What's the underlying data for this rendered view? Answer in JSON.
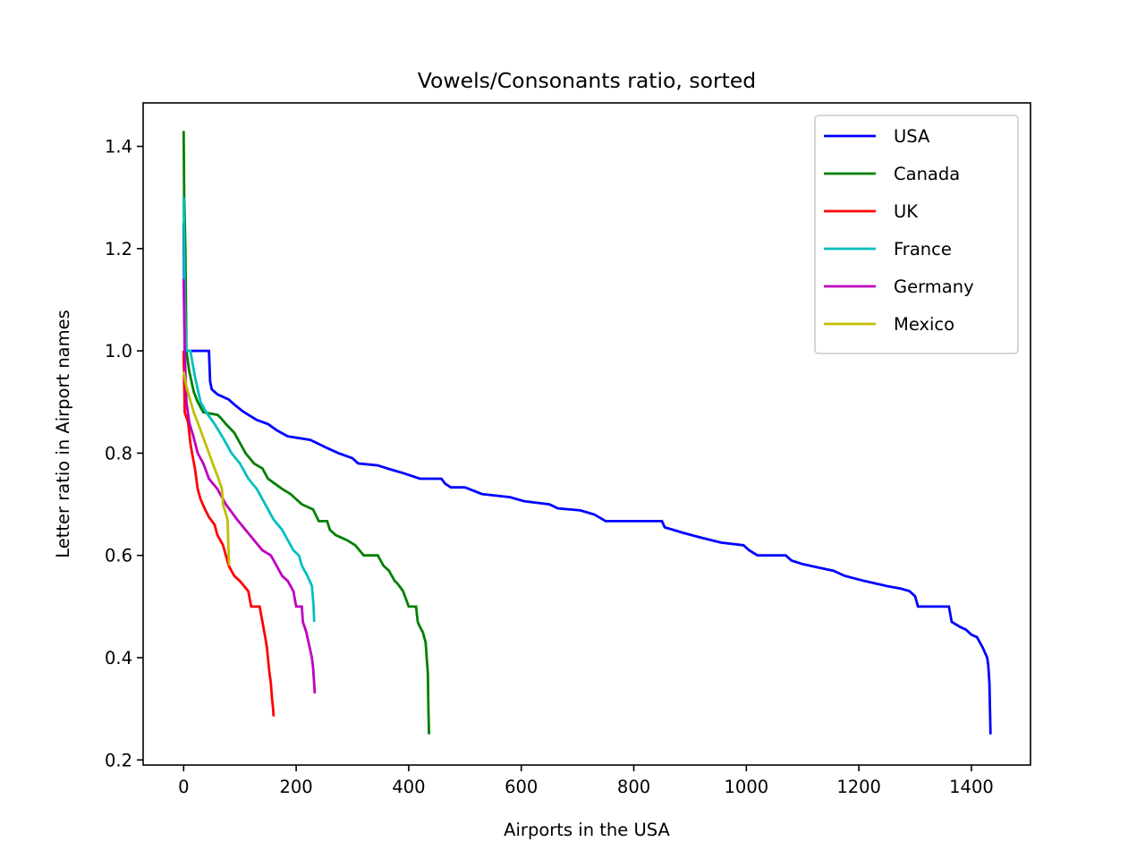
{
  "chart_data": {
    "type": "line",
    "title": "Vowels/Consonants ratio, sorted",
    "xlabel": "Airports in the USA",
    "ylabel": "Letter ratio in Airport names",
    "xlim": [
      -72,
      1505
    ],
    "ylim": [
      0.19,
      1.485
    ],
    "xticks": [
      0,
      200,
      400,
      600,
      800,
      1000,
      1200,
      1400
    ],
    "xtick_labels": [
      "0",
      "200",
      "400",
      "600",
      "800",
      "1000",
      "1200",
      "1400"
    ],
    "yticks": [
      0.2,
      0.4,
      0.6,
      0.8,
      1.0,
      1.2,
      1.4
    ],
    "ytick_labels": [
      "0.2",
      "0.4",
      "0.6",
      "0.8",
      "1.0",
      "1.2",
      "1.4"
    ],
    "grid": false,
    "legend_position": "top-right",
    "series": [
      {
        "name": "USA",
        "color": "#0000ff",
        "points": [
          [
            0,
            1.25
          ],
          [
            1,
            1.1
          ],
          [
            3,
            1.0
          ],
          [
            45,
            1.0
          ],
          [
            47,
            0.94
          ],
          [
            50,
            0.925
          ],
          [
            60,
            0.915
          ],
          [
            80,
            0.905
          ],
          [
            90,
            0.895
          ],
          [
            105,
            0.882
          ],
          [
            115,
            0.875
          ],
          [
            130,
            0.865
          ],
          [
            150,
            0.857
          ],
          [
            165,
            0.845
          ],
          [
            185,
            0.833
          ],
          [
            225,
            0.826
          ],
          [
            240,
            0.818
          ],
          [
            255,
            0.81
          ],
          [
            275,
            0.8
          ],
          [
            300,
            0.79
          ],
          [
            310,
            0.78
          ],
          [
            345,
            0.776
          ],
          [
            365,
            0.769
          ],
          [
            390,
            0.761
          ],
          [
            420,
            0.75
          ],
          [
            458,
            0.75
          ],
          [
            465,
            0.74
          ],
          [
            475,
            0.733
          ],
          [
            500,
            0.733
          ],
          [
            530,
            0.72
          ],
          [
            580,
            0.714
          ],
          [
            605,
            0.706
          ],
          [
            650,
            0.7
          ],
          [
            665,
            0.692
          ],
          [
            705,
            0.688
          ],
          [
            730,
            0.68
          ],
          [
            750,
            0.667
          ],
          [
            850,
            0.667
          ],
          [
            855,
            0.655
          ],
          [
            870,
            0.65
          ],
          [
            885,
            0.645
          ],
          [
            915,
            0.636
          ],
          [
            955,
            0.625
          ],
          [
            995,
            0.62
          ],
          [
            1005,
            0.61
          ],
          [
            1020,
            0.6
          ],
          [
            1070,
            0.6
          ],
          [
            1080,
            0.59
          ],
          [
            1100,
            0.583
          ],
          [
            1125,
            0.577
          ],
          [
            1155,
            0.57
          ],
          [
            1175,
            0.56
          ],
          [
            1210,
            0.55
          ],
          [
            1230,
            0.545
          ],
          [
            1250,
            0.54
          ],
          [
            1275,
            0.535
          ],
          [
            1290,
            0.53
          ],
          [
            1300,
            0.52
          ],
          [
            1305,
            0.5
          ],
          [
            1360,
            0.5
          ],
          [
            1365,
            0.47
          ],
          [
            1380,
            0.46
          ],
          [
            1390,
            0.455
          ],
          [
            1400,
            0.445
          ],
          [
            1410,
            0.44
          ],
          [
            1415,
            0.43
          ],
          [
            1420,
            0.42
          ],
          [
            1428,
            0.4
          ],
          [
            1430,
            0.385
          ],
          [
            1432,
            0.35
          ],
          [
            1433,
            0.3
          ],
          [
            1434,
            0.25
          ]
        ]
      },
      {
        "name": "Canada",
        "color": "#008000",
        "points": [
          [
            0,
            1.43
          ],
          [
            1,
            1.3
          ],
          [
            3,
            1.2
          ],
          [
            5,
            1.0
          ],
          [
            10,
            0.96
          ],
          [
            18,
            0.92
          ],
          [
            25,
            0.9
          ],
          [
            35,
            0.88
          ],
          [
            60,
            0.875
          ],
          [
            65,
            0.87
          ],
          [
            75,
            0.857
          ],
          [
            90,
            0.84
          ],
          [
            100,
            0.82
          ],
          [
            110,
            0.8
          ],
          [
            125,
            0.78
          ],
          [
            140,
            0.77
          ],
          [
            150,
            0.75
          ],
          [
            175,
            0.73
          ],
          [
            190,
            0.72
          ],
          [
            200,
            0.71
          ],
          [
            210,
            0.7
          ],
          [
            230,
            0.69
          ],
          [
            240,
            0.667
          ],
          [
            255,
            0.667
          ],
          [
            260,
            0.65
          ],
          [
            270,
            0.64
          ],
          [
            290,
            0.63
          ],
          [
            305,
            0.62
          ],
          [
            320,
            0.6
          ],
          [
            345,
            0.6
          ],
          [
            350,
            0.59
          ],
          [
            355,
            0.58
          ],
          [
            365,
            0.57
          ],
          [
            375,
            0.55
          ],
          [
            380,
            0.545
          ],
          [
            390,
            0.53
          ],
          [
            400,
            0.5
          ],
          [
            413,
            0.5
          ],
          [
            416,
            0.47
          ],
          [
            420,
            0.46
          ],
          [
            425,
            0.45
          ],
          [
            430,
            0.43
          ],
          [
            432,
            0.4
          ],
          [
            434,
            0.37
          ],
          [
            435,
            0.3
          ],
          [
            436,
            0.25
          ]
        ]
      },
      {
        "name": "UK",
        "color": "#ff0000",
        "points": [
          [
            0,
            1.0
          ],
          [
            2,
            0.88
          ],
          [
            8,
            0.86
          ],
          [
            12,
            0.82
          ],
          [
            15,
            0.8
          ],
          [
            20,
            0.77
          ],
          [
            25,
            0.73
          ],
          [
            30,
            0.71
          ],
          [
            38,
            0.69
          ],
          [
            45,
            0.675
          ],
          [
            55,
            0.66
          ],
          [
            60,
            0.64
          ],
          [
            65,
            0.63
          ],
          [
            70,
            0.62
          ],
          [
            75,
            0.6
          ],
          [
            80,
            0.58
          ],
          [
            85,
            0.57
          ],
          [
            90,
            0.56
          ],
          [
            100,
            0.55
          ],
          [
            115,
            0.53
          ],
          [
            120,
            0.5
          ],
          [
            135,
            0.5
          ],
          [
            140,
            0.47
          ],
          [
            145,
            0.44
          ],
          [
            148,
            0.42
          ],
          [
            152,
            0.375
          ],
          [
            155,
            0.35
          ],
          [
            157,
            0.32
          ],
          [
            159,
            0.3
          ],
          [
            160,
            0.285
          ]
        ]
      },
      {
        "name": "France",
        "color": "#00c0c0",
        "points": [
          [
            0,
            1.3
          ],
          [
            2,
            1.1
          ],
          [
            5,
            1.0
          ],
          [
            12,
            1.0
          ],
          [
            20,
            0.95
          ],
          [
            30,
            0.9
          ],
          [
            40,
            0.88
          ],
          [
            55,
            0.857
          ],
          [
            70,
            0.83
          ],
          [
            85,
            0.8
          ],
          [
            100,
            0.78
          ],
          [
            115,
            0.75
          ],
          [
            130,
            0.73
          ],
          [
            145,
            0.7
          ],
          [
            160,
            0.67
          ],
          [
            175,
            0.65
          ],
          [
            185,
            0.63
          ],
          [
            195,
            0.61
          ],
          [
            205,
            0.6
          ],
          [
            210,
            0.58
          ],
          [
            220,
            0.56
          ],
          [
            228,
            0.54
          ],
          [
            231,
            0.5
          ],
          [
            232,
            0.47
          ]
        ]
      },
      {
        "name": "Germany",
        "color": "#bf00bf",
        "points": [
          [
            0,
            1.14
          ],
          [
            2,
            1.0
          ],
          [
            5,
            0.9
          ],
          [
            10,
            0.86
          ],
          [
            18,
            0.83
          ],
          [
            25,
            0.8
          ],
          [
            35,
            0.78
          ],
          [
            45,
            0.75
          ],
          [
            60,
            0.73
          ],
          [
            75,
            0.7
          ],
          [
            95,
            0.67
          ],
          [
            110,
            0.65
          ],
          [
            125,
            0.63
          ],
          [
            140,
            0.61
          ],
          [
            155,
            0.6
          ],
          [
            165,
            0.58
          ],
          [
            175,
            0.56
          ],
          [
            185,
            0.55
          ],
          [
            195,
            0.53
          ],
          [
            200,
            0.5
          ],
          [
            210,
            0.5
          ],
          [
            212,
            0.47
          ],
          [
            218,
            0.45
          ],
          [
            222,
            0.43
          ],
          [
            228,
            0.4
          ],
          [
            230,
            0.38
          ],
          [
            232,
            0.35
          ],
          [
            233,
            0.33
          ]
        ]
      },
      {
        "name": "Mexico",
        "color": "#bfbf00",
        "points": [
          [
            0,
            0.96
          ],
          [
            5,
            0.93
          ],
          [
            10,
            0.91
          ],
          [
            18,
            0.88
          ],
          [
            25,
            0.86
          ],
          [
            35,
            0.83
          ],
          [
            45,
            0.8
          ],
          [
            55,
            0.77
          ],
          [
            62,
            0.75
          ],
          [
            68,
            0.73
          ],
          [
            70,
            0.7
          ],
          [
            78,
            0.67
          ],
          [
            80,
            0.6
          ],
          [
            81,
            0.58
          ]
        ]
      }
    ]
  }
}
